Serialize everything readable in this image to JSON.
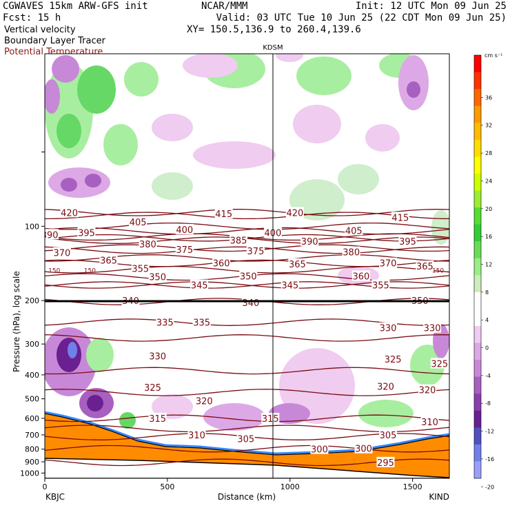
{
  "header": {
    "line1_left": "CGWAVES 15km ARW-GFS init",
    "line1_mid": "NCAR/MMM",
    "line1_right": "Init: 12 UTC Mon 09 Jun 25",
    "line2_left": "Fcst:   15 h",
    "line2_right": "Valid: 03 UTC Tue 10 Jun 25 (22 CDT Mon 09 Jun 25)",
    "line3_left": "Vertical velocity",
    "line3_right": "XY= 150.5,136.9 to 260.4,139.6",
    "line4_left": "Boundary Layer Tracer",
    "line5_left": "Potential Temperature"
  },
  "colors": {
    "theta": "#7a0a10",
    "terrain": "#ff8c00",
    "theta_title": "#8b1a1a"
  },
  "chart_data": {
    "type": "cross-section",
    "station_label": "KDSM",
    "station_distance_km": 930,
    "xlabel": "Distance (km)",
    "ylabel": "Pressure (hPa), log scale",
    "x_ticks": [
      0,
      500,
      1000,
      1500
    ],
    "x_range_km": [
      0,
      1650
    ],
    "y_ticks_hpa": [
      100,
      200,
      300,
      400,
      500,
      600,
      700,
      800,
      900,
      1000
    ],
    "y_scale": "log",
    "y_range_hpa": [
      1050,
      20
    ],
    "left_endpoint": "KBJC",
    "right_endpoint": "KIND",
    "colorbar": {
      "unit": "cm s⁻¹",
      "labels": [
        36,
        32,
        28,
        24,
        20,
        16,
        12,
        8,
        4,
        0,
        -4,
        -8,
        -12,
        -16,
        -20
      ],
      "colors": [
        "#ff0000",
        "#ff3300",
        "#ff6600",
        "#ff9900",
        "#ffbb00",
        "#ffdd00",
        "#ffff00",
        "#ccff00",
        "#99ee33",
        "#55dd33",
        "#33cc33",
        "#66dd55",
        "#99ee88",
        "#cceebb",
        "#ffffff",
        "#ffffff",
        "#f0ccf0",
        "#dda8e6",
        "#c888d8",
        "#a860c0",
        "#8a40a8",
        "#6a2090",
        "#5050c0",
        "#7080e8",
        "#9aa0f8"
      ]
    },
    "theta_labels": [
      {
        "v": 420,
        "x": 100,
        "p": 88
      },
      {
        "v": 415,
        "x": 730,
        "p": 89
      },
      {
        "v": 420,
        "x": 1020,
        "p": 88
      },
      {
        "v": 415,
        "x": 1450,
        "p": 92
      },
      {
        "v": 405,
        "x": 380,
        "p": 96
      },
      {
        "v": 390,
        "x": 20,
        "p": 108
      },
      {
        "v": 395,
        "x": 170,
        "p": 106
      },
      {
        "v": 400,
        "x": 570,
        "p": 103
      },
      {
        "v": 385,
        "x": 790,
        "p": 114
      },
      {
        "v": 400,
        "x": 930,
        "p": 106
      },
      {
        "v": 405,
        "x": 1260,
        "p": 104
      },
      {
        "v": 390,
        "x": 1080,
        "p": 115
      },
      {
        "v": 395,
        "x": 1480,
        "p": 115
      },
      {
        "v": 380,
        "x": 420,
        "p": 118
      },
      {
        "v": 375,
        "x": 570,
        "p": 124
      },
      {
        "v": 375,
        "x": 860,
        "p": 126
      },
      {
        "v": 380,
        "x": 1250,
        "p": 127
      },
      {
        "v": 370,
        "x": 70,
        "p": 128
      },
      {
        "v": 365,
        "x": 260,
        "p": 137
      },
      {
        "v": 360,
        "x": 720,
        "p": 141
      },
      {
        "v": 365,
        "x": 1030,
        "p": 142
      },
      {
        "v": 370,
        "x": 1400,
        "p": 141
      },
      {
        "v": 365,
        "x": 1550,
        "p": 145
      },
      {
        "v": 355,
        "x": 390,
        "p": 148
      },
      {
        "v": 350,
        "x": 460,
        "p": 160
      },
      {
        "v": 350,
        "x": 830,
        "p": 159
      },
      {
        "v": 360,
        "x": 1290,
        "p": 159
      },
      {
        "v": 345,
        "x": 630,
        "p": 173
      },
      {
        "v": 345,
        "x": 1000,
        "p": 173
      },
      {
        "v": 355,
        "x": 1370,
        "p": 173
      },
      {
        "v": 340,
        "x": 350,
        "p": 200
      },
      {
        "v": 340,
        "x": 840,
        "p": 204
      },
      {
        "v": 350,
        "x": 1530,
        "p": 200
      },
      {
        "v": 335,
        "x": 490,
        "p": 245
      },
      {
        "v": 335,
        "x": 640,
        "p": 245
      },
      {
        "v": 330,
        "x": 1400,
        "p": 258
      },
      {
        "v": 330,
        "x": 1580,
        "p": 258
      },
      {
        "v": 330,
        "x": 460,
        "p": 335
      },
      {
        "v": 325,
        "x": 1420,
        "p": 345
      },
      {
        "v": 325,
        "x": 1610,
        "p": 360
      },
      {
        "v": 325,
        "x": 440,
        "p": 450
      },
      {
        "v": 320,
        "x": 1390,
        "p": 445
      },
      {
        "v": 320,
        "x": 1560,
        "p": 460
      },
      {
        "v": 320,
        "x": 650,
        "p": 510
      },
      {
        "v": 315,
        "x": 460,
        "p": 600
      },
      {
        "v": 315,
        "x": 920,
        "p": 600
      },
      {
        "v": 310,
        "x": 620,
        "p": 700
      },
      {
        "v": 310,
        "x": 1570,
        "p": 620
      },
      {
        "v": 305,
        "x": 820,
        "p": 725
      },
      {
        "v": 305,
        "x": 1400,
        "p": 700
      },
      {
        "v": 300,
        "x": 1120,
        "p": 800
      },
      {
        "v": 300,
        "x": 1300,
        "p": 795
      },
      {
        "v": 295,
        "x": 1390,
        "p": 905
      }
    ],
    "inline_labels": [
      {
        "v": 150,
        "x": 5,
        "p": 150
      },
      {
        "v": 150,
        "x": 150,
        "p": 150
      },
      {
        "v": 150,
        "x": 1570,
        "p": 150
      }
    ]
  }
}
